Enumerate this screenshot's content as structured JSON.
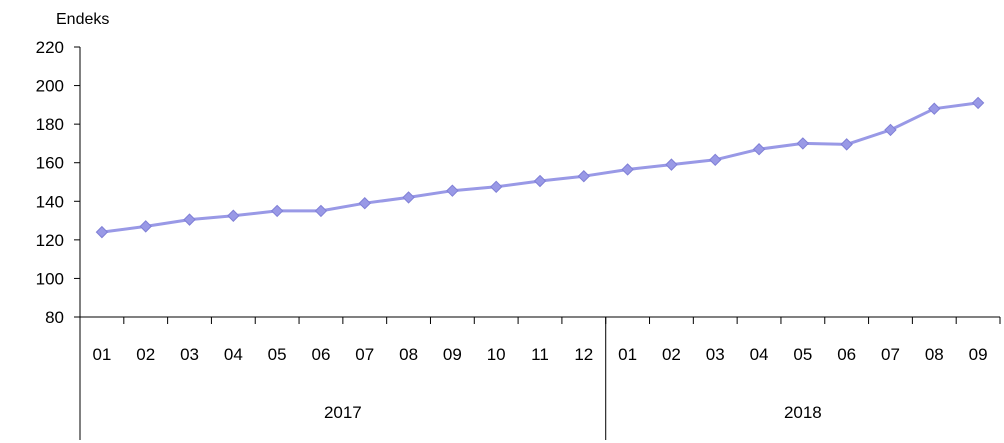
{
  "chart_data": {
    "type": "line",
    "ylabel": "Endeks",
    "ylim": [
      80,
      220
    ],
    "y_ticks": [
      "80",
      "100",
      "120",
      "140",
      "160",
      "180",
      "200",
      "220"
    ],
    "categories": [
      "01",
      "02",
      "03",
      "04",
      "05",
      "06",
      "07",
      "08",
      "09",
      "10",
      "11",
      "12",
      "01",
      "02",
      "03",
      "04",
      "05",
      "06",
      "07",
      "08",
      "09"
    ],
    "groups": [
      {
        "label": "2017",
        "count": 12
      },
      {
        "label": "2018",
        "count": 9
      }
    ],
    "series": [
      {
        "values": [
          124,
          127,
          130.5,
          132.5,
          135,
          135,
          139,
          142,
          145.5,
          147.5,
          150.5,
          153,
          156.5,
          159,
          161.5,
          167,
          170,
          169.5,
          177,
          188,
          191
        ]
      }
    ],
    "grid": false,
    "legend": "none",
    "colors": {
      "line": "#9999e6",
      "marker": "#9999e6",
      "axis": "#000000"
    }
  }
}
